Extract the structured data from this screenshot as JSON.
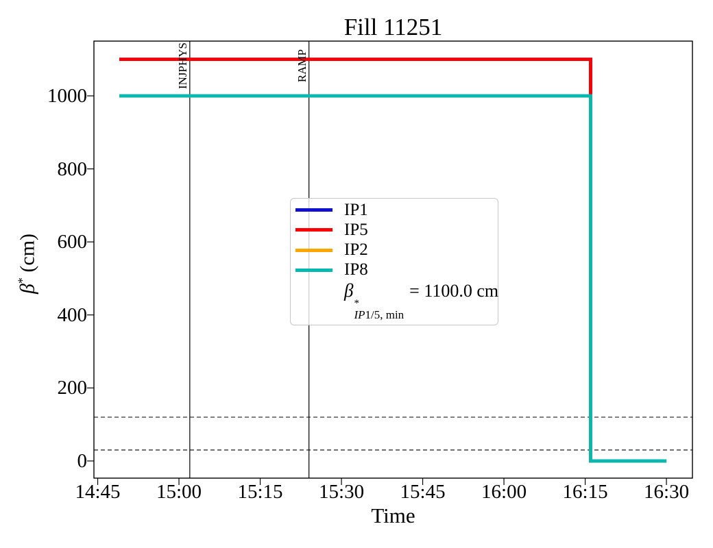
{
  "ylabel_parts": {
    "beta": "β",
    "sup": "*",
    "unit": " (cm)"
  },
  "chart_data": {
    "type": "line",
    "title": "Fill 11251",
    "xlabel": "Time",
    "ylabel": "β* (cm)",
    "x_ticks": [
      "14:45",
      "15:00",
      "15:15",
      "15:30",
      "15:45",
      "16:00",
      "16:15",
      "16:30"
    ],
    "y_ticks": [
      0,
      200,
      400,
      600,
      800,
      1000
    ],
    "ylim": [
      -47,
      1150
    ],
    "xlim_minutes": [
      884.3,
      994.8
    ],
    "grid": false,
    "series": [
      {
        "name": "IP1",
        "color": "#1010d0",
        "points": [
          [
            "14:49",
            1100
          ],
          [
            "16:16",
            1100
          ],
          [
            "16:16",
            0
          ],
          [
            "16:30",
            0
          ]
        ]
      },
      {
        "name": "IP5",
        "color": "#fa0000",
        "points": [
          [
            "14:49",
            1100
          ],
          [
            "16:16",
            1100
          ],
          [
            "16:16",
            0
          ],
          [
            "16:30",
            0
          ]
        ]
      },
      {
        "name": "IP2",
        "color": "#ffa500",
        "points": [
          [
            "14:49",
            1000
          ],
          [
            "16:16",
            1000
          ],
          [
            "16:16",
            0
          ],
          [
            "16:30",
            0
          ]
        ]
      },
      {
        "name": "IP8",
        "color": "#05b8b0",
        "points": [
          [
            "14:49",
            1000
          ],
          [
            "16:16",
            1000
          ],
          [
            "16:16",
            0
          ],
          [
            "16:30",
            0
          ]
        ]
      }
    ],
    "event_lines": [
      {
        "label": "INJPHYS",
        "time": "15:02"
      },
      {
        "label": "RAMP",
        "time": "15:24"
      }
    ],
    "dashed_hlines": [
      120,
      30
    ],
    "legend": {
      "position": "center",
      "entries": [
        {
          "label": "IP1",
          "color": "#1010d0"
        },
        {
          "label": "IP5",
          "color": "#fa0000"
        },
        {
          "label": "IP2",
          "color": "#ffa500"
        },
        {
          "label": "IP8",
          "color": "#05b8b0"
        }
      ],
      "note": {
        "beta": "β",
        "sup": "*",
        "sub_italic": "IP",
        "sub_rest": "1/5, min",
        "rhs": "= 1100.0 cm"
      }
    }
  }
}
